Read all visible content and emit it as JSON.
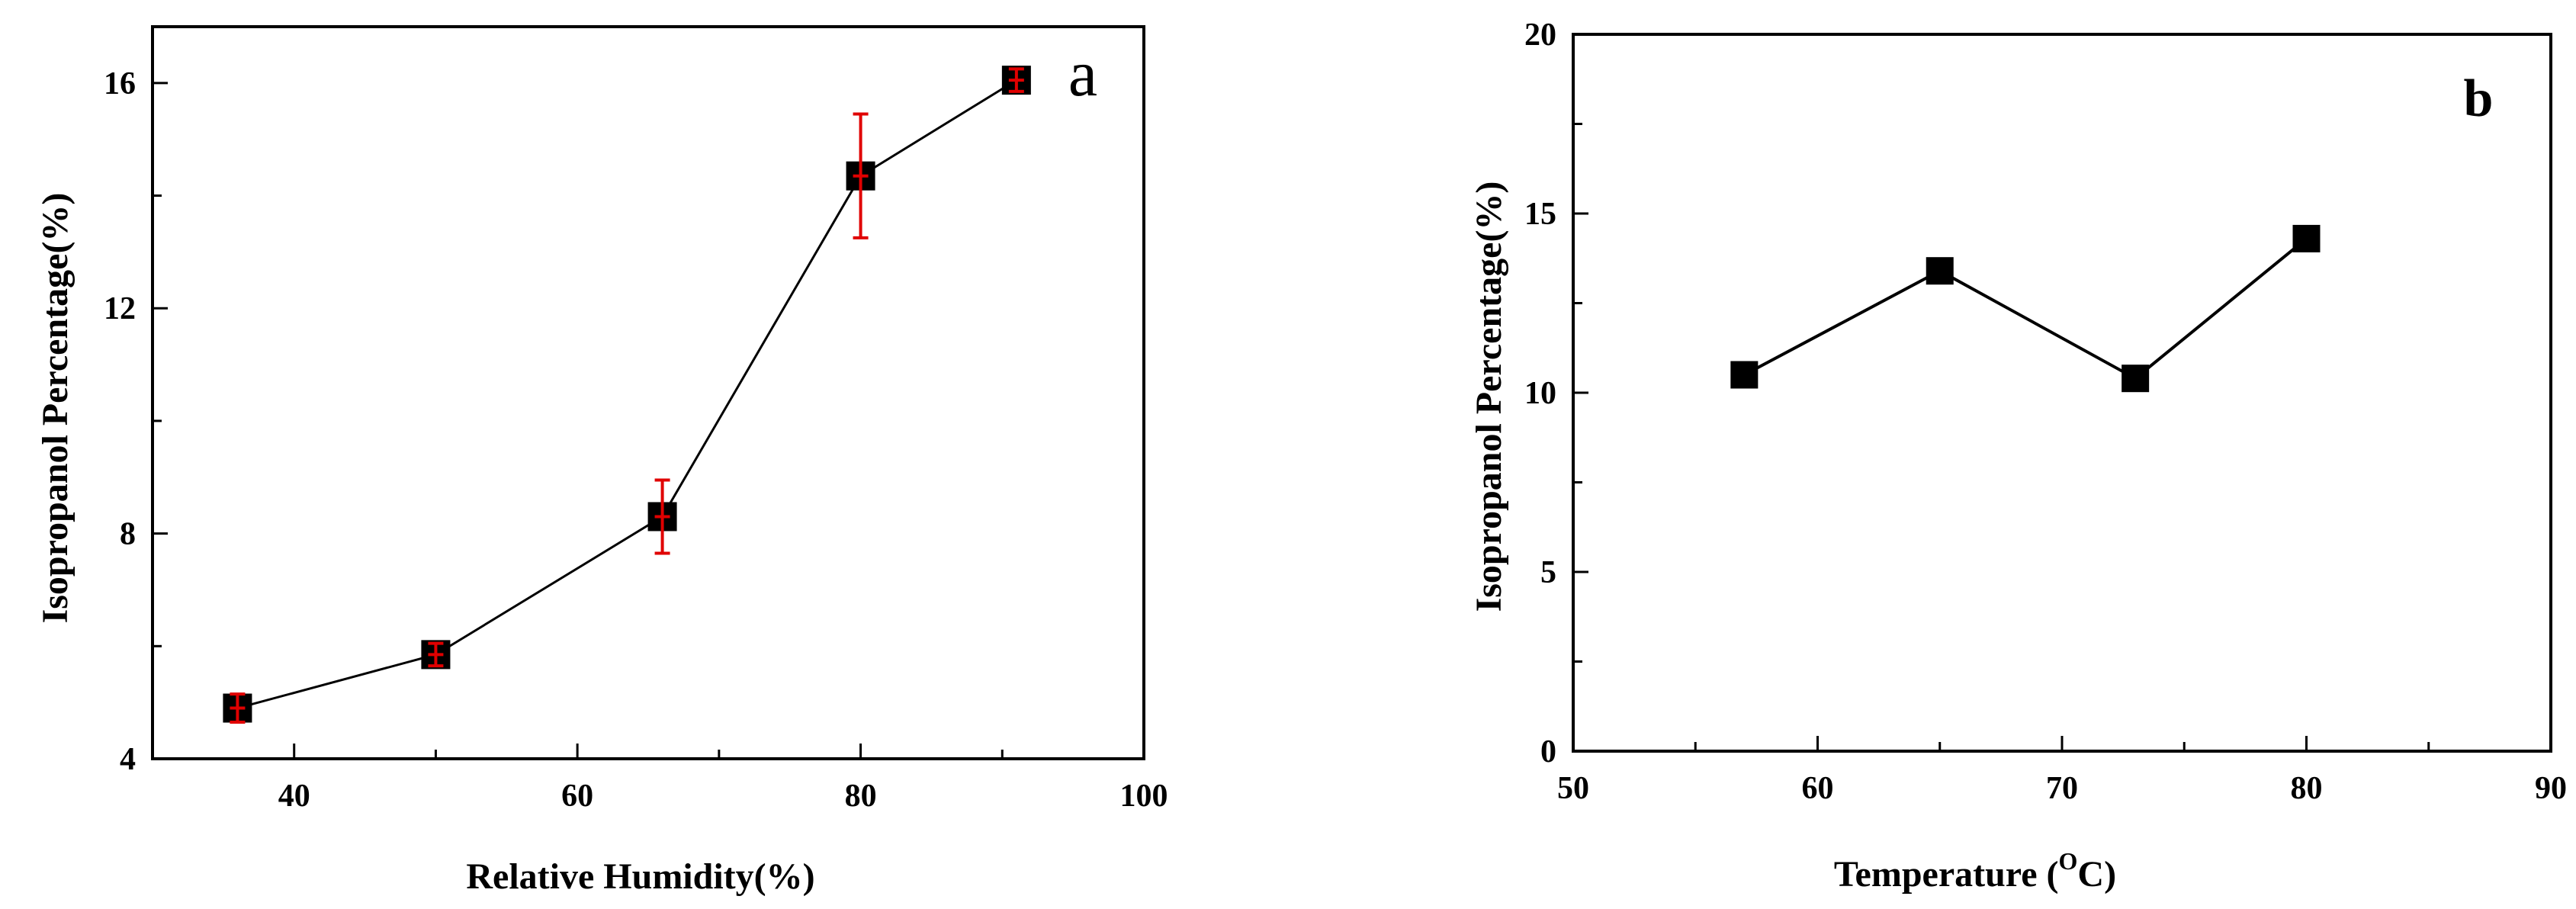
{
  "chart_data": [
    {
      "type": "line",
      "panel_label": "a",
      "xlabel": "Relative Humidity(%)",
      "ylabel": "Isopropanol Percentage(%)",
      "xlim": [
        30,
        100
      ],
      "ylim": [
        4,
        17
      ],
      "x_ticks": [
        40,
        60,
        80,
        100
      ],
      "y_ticks": [
        4,
        8,
        12,
        16
      ],
      "x_minor_step": 10,
      "y_minor_step": 2,
      "grid": false,
      "marker": "square",
      "line_color": "#000000",
      "marker_color": "#000000",
      "error_bar_color": "#e00000",
      "series": [
        {
          "x": [
            36,
            50,
            66,
            80,
            91
          ],
          "y": [
            4.9,
            5.85,
            8.3,
            14.35,
            16.05
          ],
          "error": [
            0.25,
            0.2,
            0.65,
            1.1,
            0.2
          ]
        }
      ]
    },
    {
      "type": "line",
      "panel_label": "b",
      "xlabel": "Temperature (°C)",
      "xlabel_parts": [
        "Temperature (",
        "O",
        "C)"
      ],
      "ylabel": "Isopropanol Percentage(%)",
      "xlim": [
        50,
        90
      ],
      "ylim": [
        0,
        20
      ],
      "x_ticks": [
        50,
        60,
        70,
        80,
        90
      ],
      "y_ticks": [
        0,
        5,
        10,
        15,
        20
      ],
      "x_minor_step": 5,
      "y_minor_step": 2.5,
      "grid": false,
      "marker": "square",
      "line_color": "#000000",
      "marker_color": "#000000",
      "series": [
        {
          "x": [
            57,
            65,
            73,
            80
          ],
          "y": [
            10.5,
            13.4,
            10.4,
            14.3
          ]
        }
      ]
    }
  ]
}
